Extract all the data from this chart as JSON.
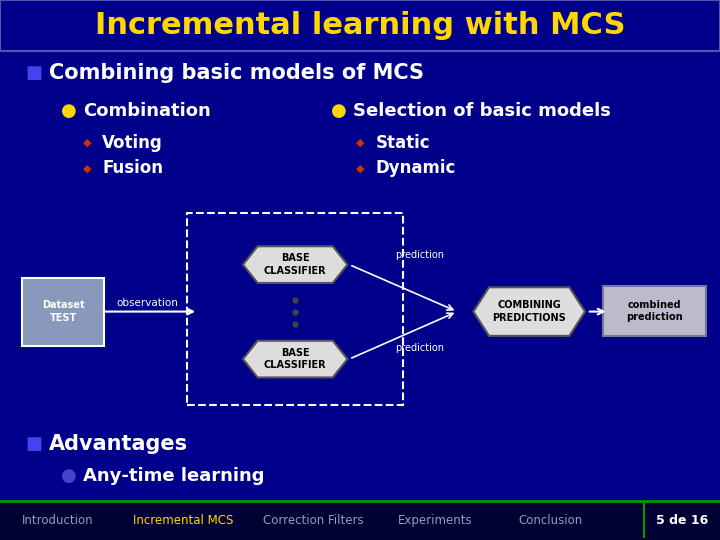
{
  "title": "Incremental learning with MCS",
  "title_color": "#FFD700",
  "bg_color": "#00008B",
  "main_bullet": "Combining basic models of MCS",
  "combination_label": "Combination",
  "selection_label": "Selection of basic models",
  "level2_left": [
    "Voting",
    "Fusion"
  ],
  "level2_right": [
    "Static",
    "Dynamic"
  ],
  "advantages_bullet": "Advantages",
  "advantages_sub": "Any-time learning",
  "footer_items": [
    "Introduction",
    "Incremental MCS",
    "Correction Filters",
    "Experiments",
    "Conclusion"
  ],
  "footer_highlight": "Incremental MCS",
  "footer_page": "5 de 16",
  "observation_label": "observation",
  "prediction1_label": "prediction",
  "prediction2_label": "prediction",
  "dataset_label": "Dataset\nTEST",
  "base_label": "BASE\nCLASSIFIER",
  "combining_label": "COMBINING\nPREDICTIONS",
  "combined_label": "combined\nprediction"
}
